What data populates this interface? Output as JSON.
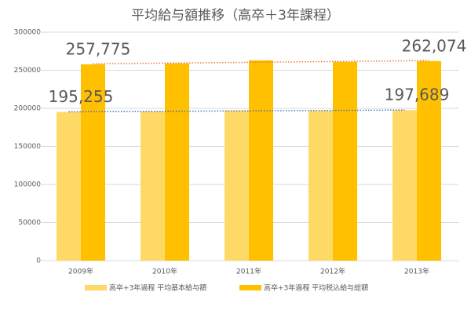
{
  "chart_data": {
    "type": "bar",
    "title": "平均給与額推移（高卒＋3年課程）",
    "categories": [
      "2009年",
      "2010年",
      "2011年",
      "2012年",
      "2013年"
    ],
    "series": [
      {
        "name": "高卒+3年過程 平均基本給与額",
        "color": "#ffd966",
        "values": [
          195255,
          196000,
          197000,
          197000,
          197689
        ],
        "value_labels": [
          "195,255",
          null,
          null,
          null,
          "197,689"
        ],
        "trendline_color": "#4472c4"
      },
      {
        "name": "高卒+3年過程 平均税込給与総額",
        "color": "#ffc000",
        "values": [
          257775,
          259000,
          263000,
          261000,
          262074
        ],
        "value_labels": [
          "257,775",
          null,
          null,
          null,
          "262,074"
        ],
        "trendline_color": "#ed7d31"
      }
    ],
    "ylim": [
      0,
      300000
    ],
    "yticks": [
      0,
      50000,
      100000,
      150000,
      200000,
      250000,
      300000
    ],
    "grid": true,
    "legend": "bottom"
  }
}
